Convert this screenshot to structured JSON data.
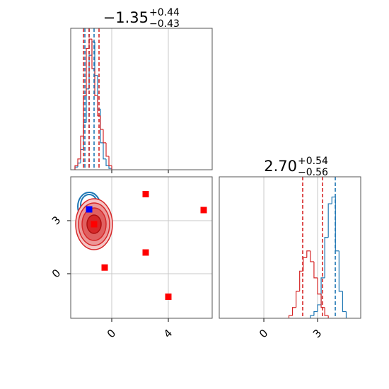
{
  "chart_data": [
    {
      "type": "histogram",
      "title": "−1.35",
      "title_sup": "+0.44",
      "title_sub": "−0.43",
      "xlim": [
        -2.9,
        7.1
      ],
      "ylim": [
        0,
        1.05
      ],
      "xticks": [
        0,
        4
      ],
      "grid": true,
      "series": [
        {
          "color": "#1f77b4",
          "bins": [
            -2.6,
            -2.4,
            -2.2,
            -2.0,
            -1.8,
            -1.6,
            -1.4,
            -1.2,
            -1.0,
            -0.8,
            -0.6,
            -0.4,
            -0.2,
            0.0
          ],
          "values": [
            0.02,
            0.05,
            0.15,
            0.35,
            0.6,
            0.85,
            0.95,
            0.7,
            0.45,
            0.2,
            0.08,
            0.03,
            0.01
          ]
        },
        {
          "color": "#d62728",
          "bins": [
            -2.6,
            -2.4,
            -2.2,
            -2.0,
            -1.8,
            -1.6,
            -1.4,
            -1.2,
            -1.0,
            -0.8,
            -0.6,
            -0.4,
            -0.2,
            0.0
          ],
          "values": [
            0.03,
            0.08,
            0.25,
            0.55,
            0.9,
            0.97,
            0.75,
            0.55,
            0.4,
            0.3,
            0.2,
            0.1,
            0.03
          ]
        }
      ],
      "quantiles": [
        {
          "color": "#1f77b4",
          "values": [
            -1.9,
            -1.6,
            -1.25
          ]
        },
        {
          "color": "#d62728",
          "values": [
            -2.0,
            -1.6,
            -0.9
          ]
        }
      ]
    },
    {
      "type": "scatter",
      "xlim": [
        -2.9,
        7.1
      ],
      "ylim": [
        -2.52,
        5.48
      ],
      "xticks": [
        0,
        4
      ],
      "yticks": [
        0,
        3
      ],
      "grid": true,
      "series": [
        {
          "color": "#ff0000",
          "x": [
            2.4,
            6.5,
            2.4,
            -0.5,
            4.0,
            -1.25
          ],
          "y": [
            4.5,
            3.6,
            1.2,
            0.35,
            -1.3,
            2.8
          ]
        },
        {
          "color": "#0000ff",
          "x": [
            -1.6
          ],
          "y": [
            3.64
          ]
        }
      ]
    },
    {
      "type": "histogram",
      "title": "2.70",
      "title_sup": "+0.54",
      "title_sub": "−0.56",
      "xlim": [
        -2.49,
        5.41
      ],
      "ylim": [
        0,
        1.05
      ],
      "xticks": [
        0,
        3
      ],
      "grid": true,
      "series": [
        {
          "color": "#1f77b4",
          "bins": [
            2.6,
            2.8,
            3.0,
            3.2,
            3.4,
            3.6,
            3.8,
            4.0,
            4.2,
            4.4,
            4.6
          ],
          "values": [
            0.02,
            0.05,
            0.1,
            0.3,
            0.6,
            0.85,
            0.9,
            0.5,
            0.2,
            0.05
          ]
        },
        {
          "color": "#d62728",
          "bins": [
            1.4,
            1.6,
            1.8,
            2.0,
            2.2,
            2.4,
            2.6,
            2.8,
            3.0,
            3.2,
            3.4,
            3.6
          ],
          "values": [
            0.02,
            0.08,
            0.2,
            0.35,
            0.45,
            0.5,
            0.42,
            0.3,
            0.18,
            0.08,
            0.02
          ]
        }
      ],
      "quantiles": [
        {
          "color": "#1f77b4",
          "values": [
            3.99
          ]
        },
        {
          "color": "#d62728",
          "values": [
            2.17,
            3.28
          ]
        }
      ]
    }
  ]
}
